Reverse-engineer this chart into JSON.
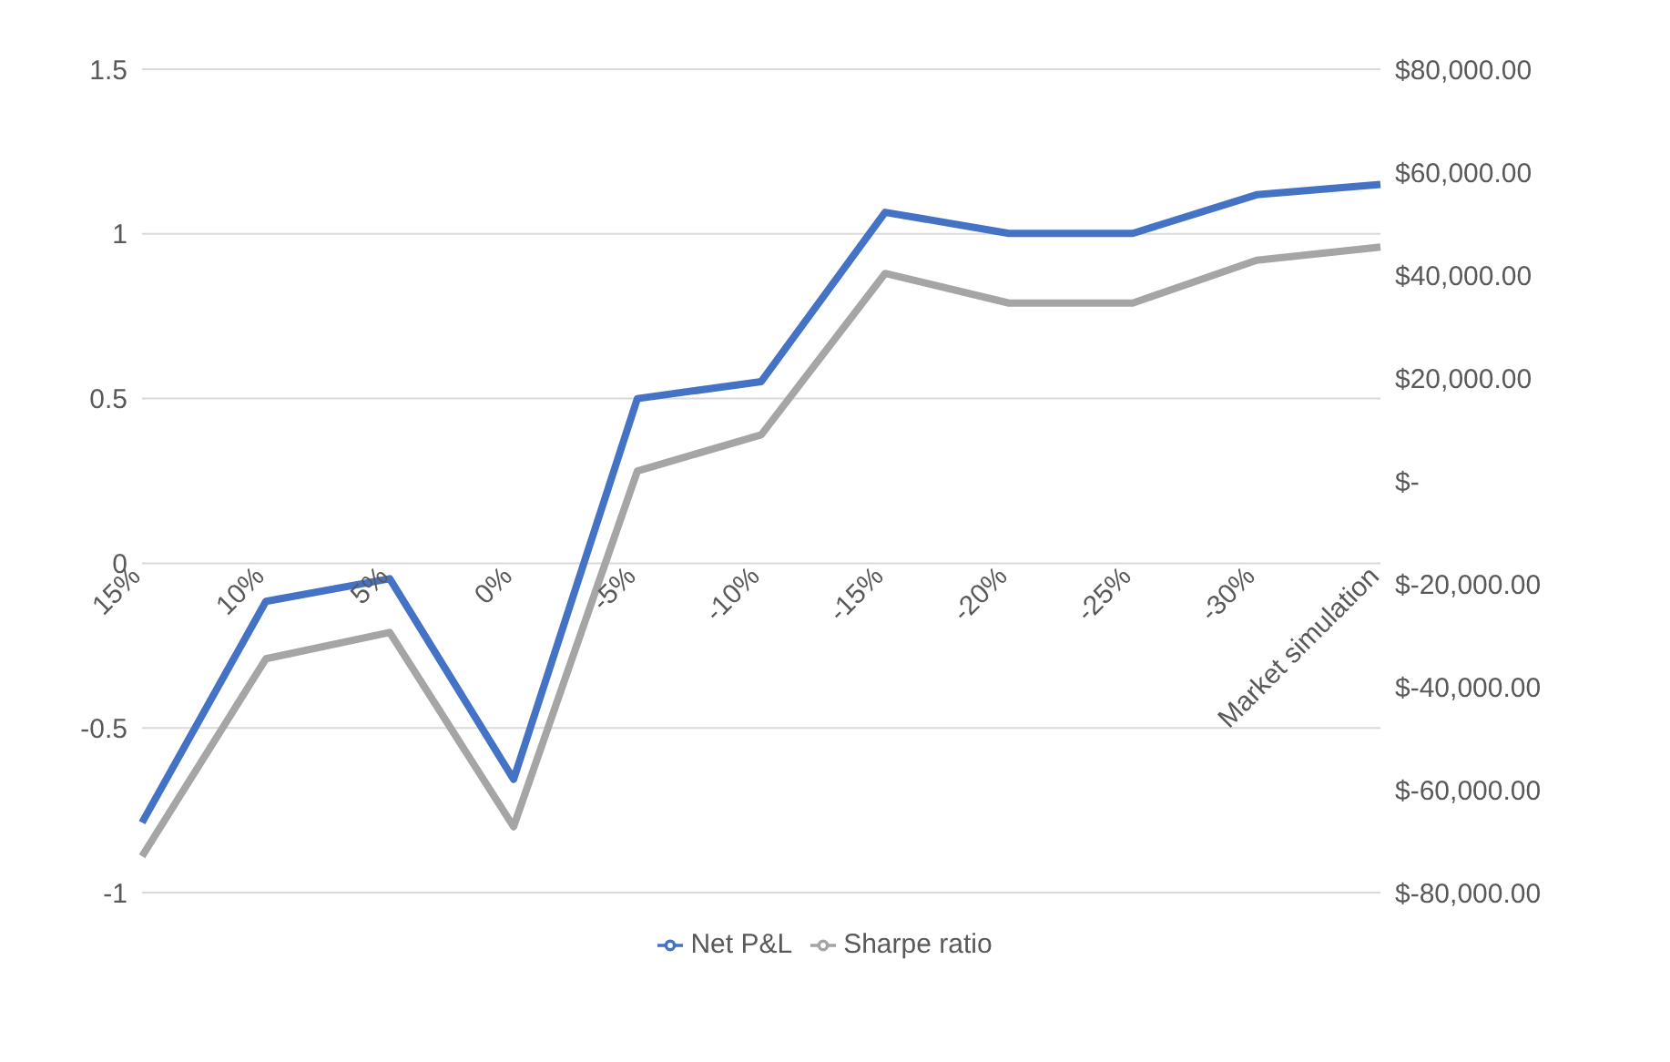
{
  "chart_data": {
    "type": "line",
    "categories": [
      "15%",
      "10%",
      "5%",
      "0%",
      "-5%",
      "-10%",
      "-15%",
      "-20%",
      "-25%",
      "-30%",
      "Market simulation"
    ],
    "series": [
      {
        "name": "Sharpe ratio",
        "color": "#a5a5a5",
        "values": [
          -0.89,
          -0.29,
          -0.21,
          -0.8,
          0.28,
          0.39,
          0.88,
          0.79,
          0.79,
          0.92,
          0.96
        ]
      },
      {
        "name": "Net P&L",
        "color": "#4472c4",
        "axis": "y2",
        "values": [
          -66400,
          -23400,
          -19000,
          -58000,
          16000,
          19300,
          52200,
          48100,
          48100,
          55600,
          57600
        ]
      }
    ],
    "ylim": [
      -1,
      1.5
    ],
    "yticks": [
      -1,
      -0.5,
      0,
      0.5,
      1,
      1.5
    ],
    "y2lim": [
      -80000,
      80000
    ],
    "y2ticks": [
      {
        "value": -80000,
        "label": "$-80,000.00"
      },
      {
        "value": -60000,
        "label": "$-60,000.00"
      },
      {
        "value": -40000,
        "label": "$-40,000.00"
      },
      {
        "value": -20000,
        "label": "$-20,000.00"
      },
      {
        "value": 0,
        "label": "$-"
      },
      {
        "value": 20000,
        "label": "$20,000.00"
      },
      {
        "value": 40000,
        "label": "$40,000.00"
      },
      {
        "value": 60000,
        "label": "$60,000.00"
      },
      {
        "value": 80000,
        "label": "$80,000.00"
      }
    ],
    "grid": "y",
    "legend": "bottom",
    "marker": "none",
    "line_style": "solid"
  }
}
